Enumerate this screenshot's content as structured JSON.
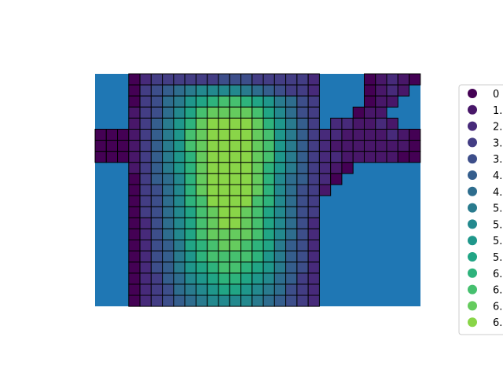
{
  "chart_data": {
    "type": "heatmap",
    "title": "",
    "xlabel": "",
    "ylabel": "",
    "axes_visible": false,
    "background_color": "#1f77b4",
    "cell_edge_color": "#000000",
    "colormap": "viridis",
    "legend_placement": "right",
    "legend_entries": [
      "0",
      "1.",
      "2.",
      "3.",
      "3.",
      "4.",
      "4.",
      "5.",
      "5.",
      "5.",
      "5.",
      "6.",
      "6.",
      "6.",
      "6."
    ],
    "legend_colors": [
      "#440154",
      "#481769",
      "#472a7a",
      "#433d84",
      "#3d4e8a",
      "#355e8d",
      "#2e6d8e",
      "#297b8e",
      "#23898e",
      "#1f978b",
      "#21a585",
      "#2eb37c",
      "#46c06f",
      "#65cb5e",
      "#89d548"
    ],
    "grid_columns": 29,
    "grid_rows": 21,
    "cells_note": "values are category indices 0-14 into legend_entries",
    "values": [
      [
        null,
        null,
        null,
        0,
        2,
        3,
        3,
        3,
        3,
        3,
        3,
        4,
        4,
        4,
        3,
        3,
        3,
        3,
        3,
        2,
        null,
        null,
        null,
        null,
        0,
        1,
        2,
        1,
        0
      ],
      [
        null,
        null,
        null,
        0,
        3,
        4,
        5,
        6,
        7,
        8,
        8,
        8,
        8,
        7,
        6,
        5,
        4,
        3,
        3,
        2,
        null,
        null,
        null,
        null,
        0,
        1,
        2,
        1,
        null
      ],
      [
        null,
        null,
        null,
        0,
        3,
        4,
        6,
        7,
        9,
        10,
        11,
        12,
        12,
        11,
        10,
        9,
        7,
        6,
        4,
        3,
        null,
        null,
        null,
        null,
        0,
        1,
        1,
        null,
        null
      ],
      [
        null,
        null,
        null,
        1,
        3,
        4,
        6,
        8,
        10,
        12,
        13,
        13,
        13,
        13,
        12,
        10,
        8,
        6,
        4,
        3,
        null,
        null,
        null,
        0,
        1,
        1,
        null,
        null,
        null
      ],
      [
        null,
        null,
        null,
        1,
        3,
        5,
        7,
        9,
        11,
        13,
        14,
        14,
        14,
        14,
        13,
        11,
        9,
        7,
        5,
        3,
        null,
        2,
        2,
        1,
        1,
        2,
        1,
        null,
        null
      ],
      [
        0,
        0,
        0,
        1,
        3,
        5,
        7,
        9,
        12,
        13,
        14,
        14,
        14,
        14,
        13,
        12,
        9,
        7,
        5,
        3,
        2,
        2,
        1,
        1,
        1,
        1,
        2,
        1,
        0
      ],
      [
        0,
        0,
        0,
        1,
        3,
        5,
        7,
        9,
        12,
        13,
        14,
        14,
        14,
        14,
        13,
        12,
        9,
        7,
        5,
        3,
        2,
        1,
        1,
        1,
        1,
        1,
        1,
        1,
        0
      ],
      [
        0,
        0,
        0,
        1,
        3,
        5,
        7,
        9,
        11,
        13,
        14,
        14,
        14,
        14,
        13,
        12,
        9,
        7,
        5,
        3,
        2,
        2,
        1,
        1,
        1,
        1,
        1,
        0,
        0
      ],
      [
        null,
        null,
        null,
        1,
        3,
        5,
        7,
        9,
        11,
        13,
        14,
        14,
        14,
        14,
        13,
        11,
        9,
        7,
        5,
        3,
        2,
        1,
        0,
        null,
        null,
        null,
        null,
        null,
        null
      ],
      [
        null,
        null,
        null,
        0,
        3,
        5,
        6,
        8,
        11,
        13,
        14,
        14,
        14,
        14,
        13,
        11,
        8,
        6,
        5,
        3,
        2,
        0,
        null,
        null,
        null,
        null,
        null,
        null,
        null
      ],
      [
        null,
        null,
        null,
        0,
        3,
        4,
        6,
        8,
        11,
        13,
        14,
        14,
        14,
        14,
        13,
        11,
        8,
        6,
        4,
        3,
        1,
        null,
        null,
        null,
        null,
        null,
        null,
        null,
        null
      ],
      [
        null,
        null,
        null,
        0,
        3,
        4,
        6,
        8,
        11,
        12,
        14,
        14,
        14,
        14,
        12,
        11,
        8,
        6,
        4,
        3,
        null,
        null,
        null,
        null,
        null,
        null,
        null,
        null,
        null
      ],
      [
        null,
        null,
        null,
        0,
        3,
        4,
        6,
        8,
        10,
        12,
        13,
        14,
        14,
        13,
        12,
        10,
        8,
        6,
        4,
        3,
        null,
        null,
        null,
        null,
        null,
        null,
        null,
        null,
        null
      ],
      [
        null,
        null,
        null,
        0,
        2,
        4,
        6,
        8,
        10,
        12,
        13,
        14,
        14,
        13,
        12,
        10,
        8,
        6,
        4,
        2,
        null,
        null,
        null,
        null,
        null,
        null,
        null,
        null,
        null
      ],
      [
        null,
        null,
        null,
        0,
        2,
        4,
        6,
        8,
        10,
        12,
        13,
        13,
        13,
        13,
        12,
        10,
        8,
        6,
        4,
        2,
        null,
        null,
        null,
        null,
        null,
        null,
        null,
        null,
        null
      ],
      [
        null,
        null,
        null,
        0,
        2,
        4,
        5,
        7,
        10,
        11,
        12,
        13,
        13,
        12,
        11,
        10,
        7,
        5,
        4,
        2,
        null,
        null,
        null,
        null,
        null,
        null,
        null,
        null,
        null
      ],
      [
        null,
        null,
        null,
        0,
        2,
        4,
        5,
        7,
        9,
        11,
        12,
        12,
        12,
        12,
        11,
        9,
        7,
        5,
        4,
        2,
        null,
        null,
        null,
        null,
        null,
        null,
        null,
        null,
        null
      ],
      [
        null,
        null,
        null,
        0,
        2,
        4,
        5,
        7,
        9,
        10,
        11,
        12,
        12,
        11,
        10,
        9,
        7,
        5,
        4,
        2,
        null,
        null,
        null,
        null,
        null,
        null,
        null,
        null,
        null
      ],
      [
        null,
        null,
        null,
        0,
        2,
        3,
        5,
        6,
        8,
        9,
        10,
        11,
        11,
        10,
        9,
        8,
        6,
        5,
        3,
        2,
        null,
        null,
        null,
        null,
        null,
        null,
        null,
        null,
        null
      ],
      [
        null,
        null,
        null,
        0,
        2,
        3,
        4,
        6,
        7,
        8,
        9,
        10,
        10,
        9,
        8,
        7,
        6,
        4,
        3,
        2,
        null,
        null,
        null,
        null,
        null,
        null,
        null,
        null,
        null
      ],
      [
        null,
        null,
        null,
        0,
        2,
        3,
        4,
        5,
        6,
        7,
        8,
        8,
        8,
        8,
        7,
        6,
        5,
        4,
        3,
        2,
        null,
        null,
        null,
        null,
        null,
        null,
        null,
        null,
        null
      ]
    ]
  }
}
